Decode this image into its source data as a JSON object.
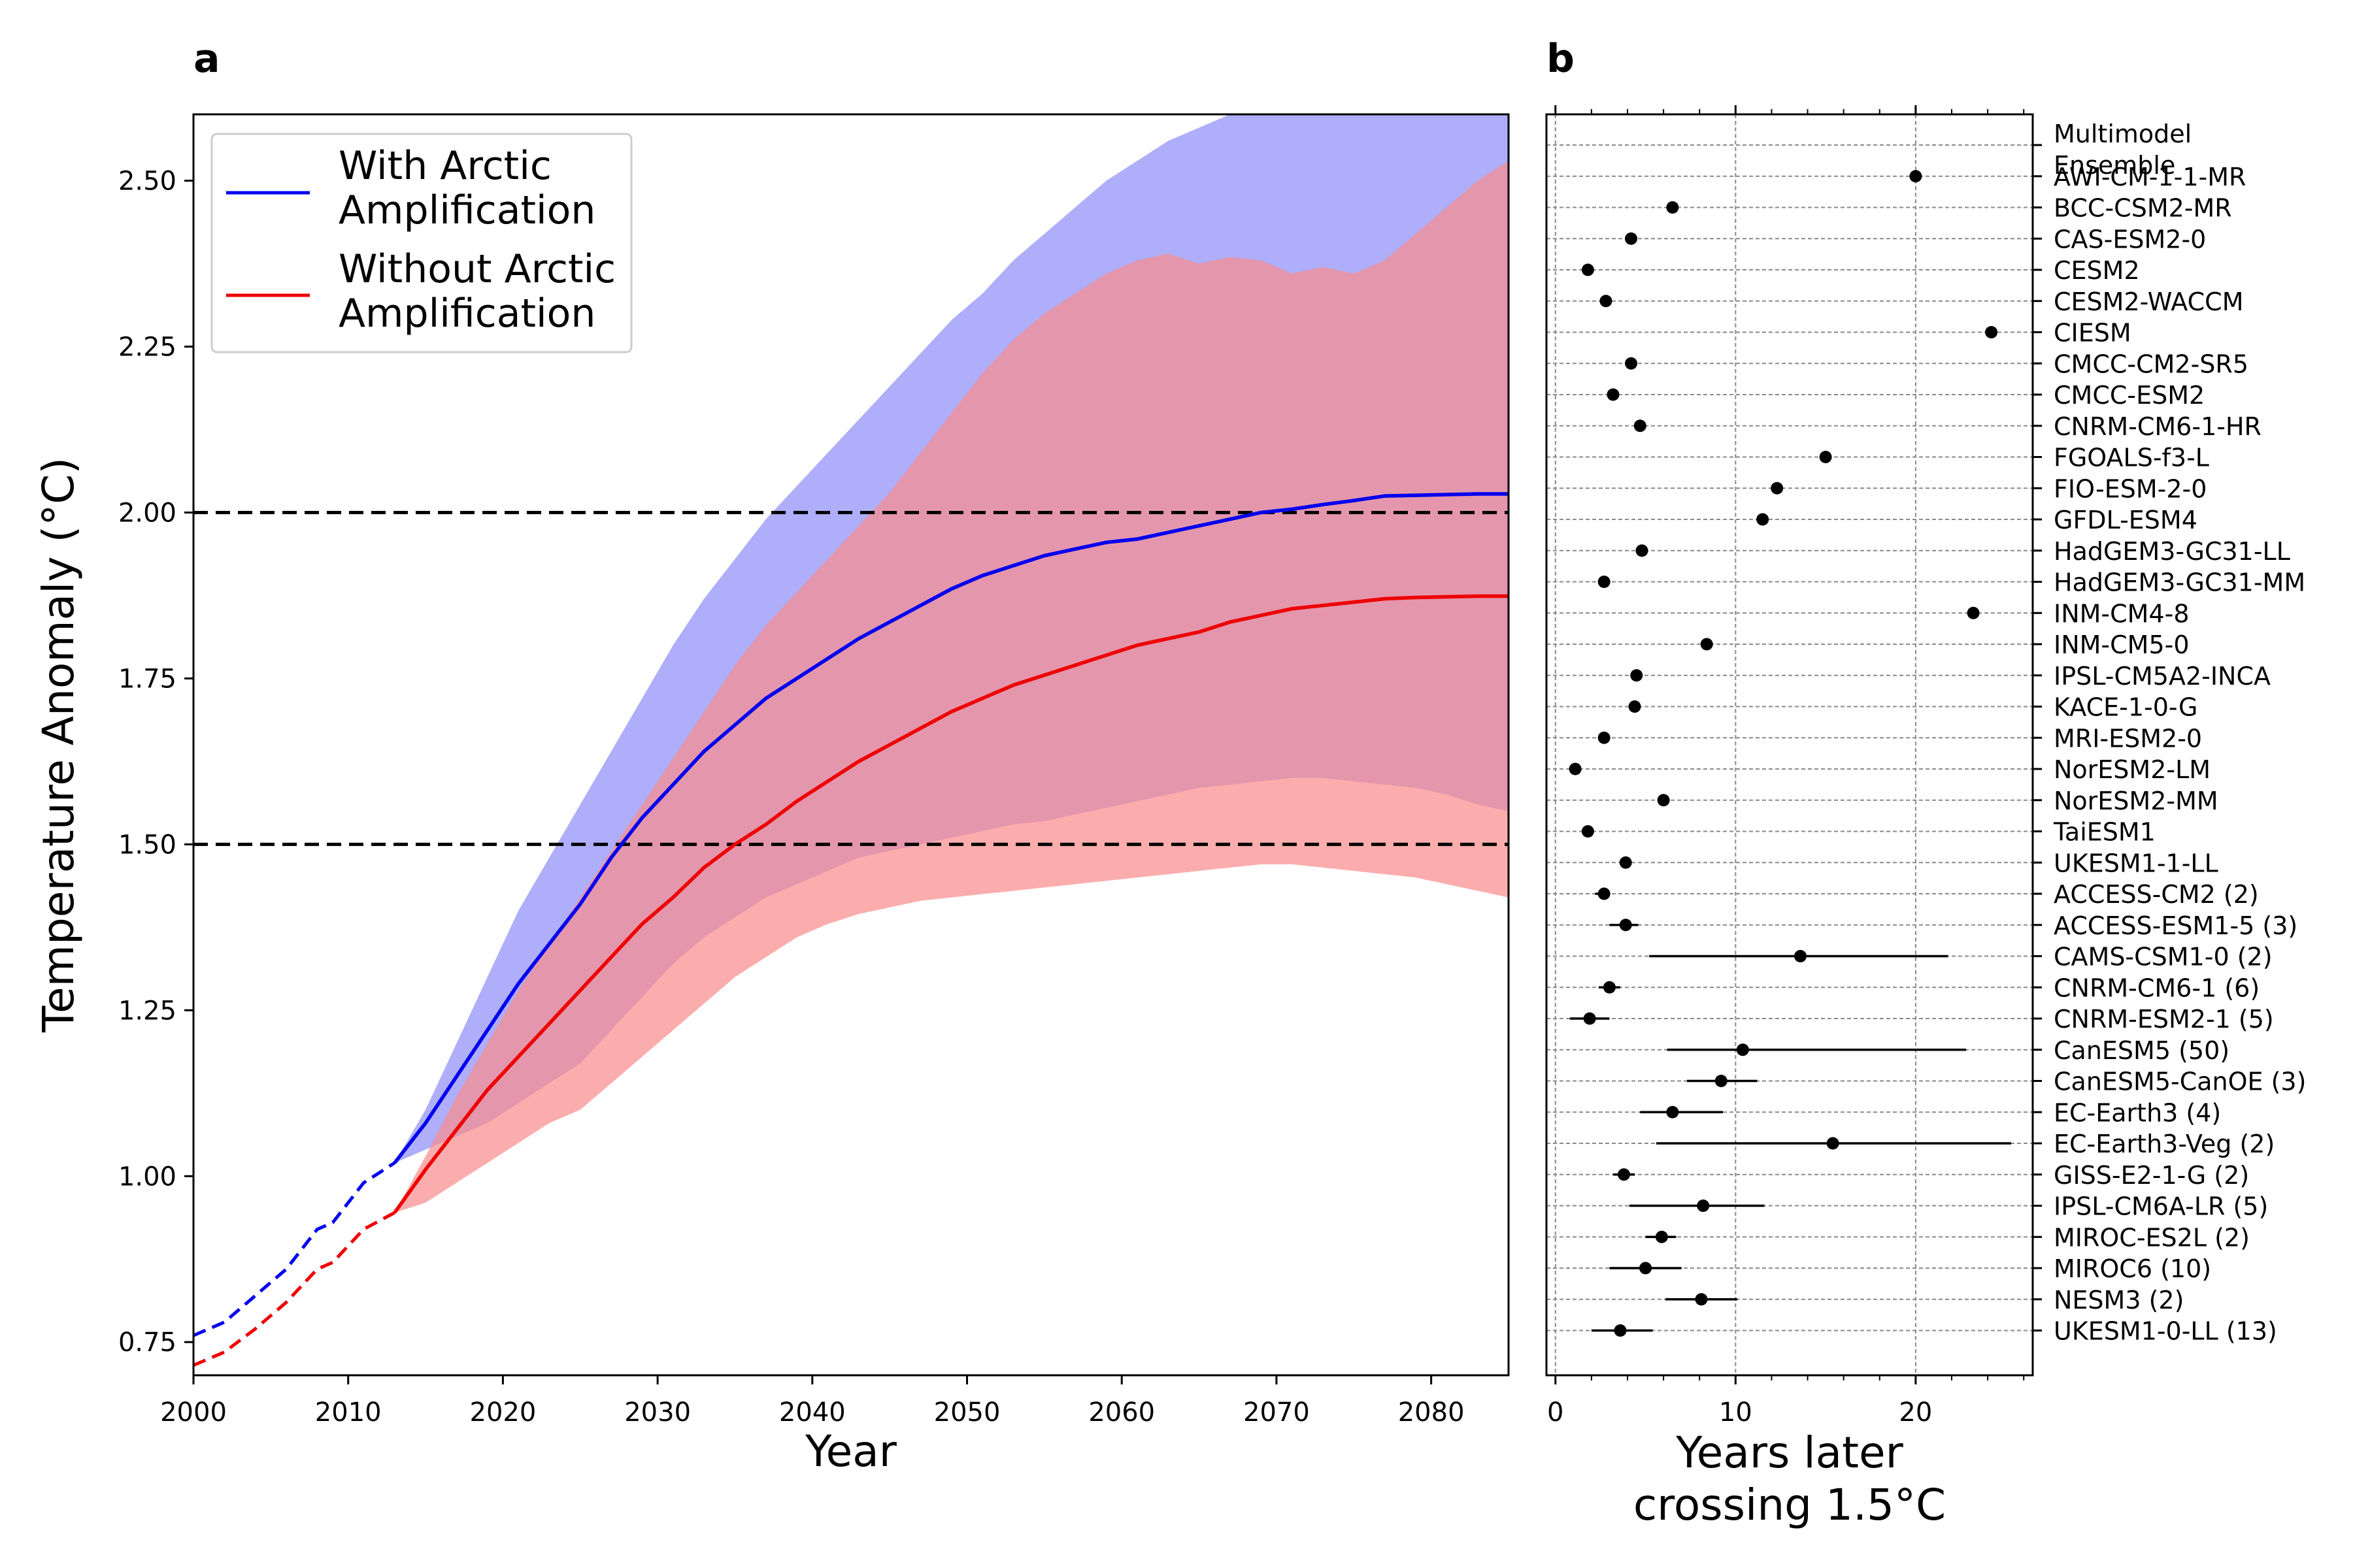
{
  "panels": {
    "a": {
      "label": "a",
      "xlabel": "Year",
      "ylabel": "Temperature Anomaly (°C)",
      "legend": [
        {
          "label_line1": "With Arctic",
          "label_line2": "Amplification",
          "color": "#0000ee"
        },
        {
          "label_line1": "Without Arctic",
          "label_line2": "Amplification",
          "color": "#ee0000"
        }
      ]
    },
    "b": {
      "label": "b",
      "xlabel_line1": "Years later",
      "xlabel_line2": "crossing 1.5°C"
    }
  },
  "chart_data": [
    {
      "type": "line",
      "xlim": [
        2000,
        2085
      ],
      "ylim": [
        0.7,
        2.6
      ],
      "xticks": [
        2000,
        2010,
        2020,
        2030,
        2040,
        2050,
        2060,
        2070,
        2080
      ],
      "yticks": [
        0.75,
        1.0,
        1.25,
        1.5,
        1.75,
        2.0,
        2.25,
        2.5
      ],
      "ytick_labels": [
        "0.75",
        "1.00",
        "1.25",
        "1.50",
        "1.75",
        "2.00",
        "2.25",
        "2.50"
      ],
      "reference_lines": [
        1.5,
        2.0
      ],
      "grid": false,
      "legend_position": "top-left",
      "colors": {
        "with": "#0000ee",
        "without": "#ee0000",
        "with_band": "#8f8ff8",
        "without_band": "#f98e8e"
      },
      "series": [
        {
          "name": "With Arctic Amplification",
          "historical_x": [
            2000,
            2002,
            2004,
            2006,
            2008,
            2009,
            2011,
            2013
          ],
          "historical_y": [
            0.76,
            0.78,
            0.82,
            0.86,
            0.92,
            0.93,
            0.99,
            1.02
          ],
          "x": [
            2013,
            2015,
            2017,
            2019,
            2021,
            2023,
            2025,
            2027,
            2029,
            2031,
            2033,
            2035,
            2037,
            2039,
            2041,
            2043,
            2045,
            2047,
            2049,
            2051,
            2053,
            2055,
            2057,
            2059,
            2061,
            2063,
            2065,
            2067,
            2069,
            2071,
            2073,
            2075,
            2077,
            2079,
            2081,
            2083,
            2085
          ],
          "y": [
            1.02,
            1.08,
            1.15,
            1.22,
            1.29,
            1.35,
            1.41,
            1.48,
            1.54,
            1.59,
            1.64,
            1.68,
            1.72,
            1.75,
            1.78,
            1.81,
            1.835,
            1.86,
            1.885,
            1.905,
            1.92,
            1.935,
            1.945,
            1.955,
            1.96,
            1.97,
            1.98,
            1.99,
            2.0,
            2.005,
            2.012,
            2.018,
            2.025,
            2.026,
            2.027,
            2.028,
            2.028
          ],
          "lower": [
            1.02,
            1.04,
            1.06,
            1.08,
            1.11,
            1.14,
            1.17,
            1.22,
            1.27,
            1.32,
            1.36,
            1.39,
            1.42,
            1.44,
            1.46,
            1.48,
            1.49,
            1.5,
            1.51,
            1.52,
            1.53,
            1.535,
            1.545,
            1.555,
            1.565,
            1.575,
            1.585,
            1.59,
            1.595,
            1.6,
            1.6,
            1.595,
            1.59,
            1.585,
            1.575,
            1.56,
            1.55
          ],
          "upper": [
            1.02,
            1.1,
            1.2,
            1.3,
            1.4,
            1.48,
            1.56,
            1.64,
            1.72,
            1.8,
            1.87,
            1.93,
            1.99,
            2.04,
            2.09,
            2.14,
            2.19,
            2.24,
            2.29,
            2.33,
            2.38,
            2.42,
            2.46,
            2.5,
            2.53,
            2.56,
            2.58,
            2.6,
            2.62,
            2.64,
            2.66,
            2.68,
            2.7,
            2.72,
            2.74,
            2.76,
            2.78
          ]
        },
        {
          "name": "Without Arctic Amplification",
          "historical_x": [
            2000,
            2002,
            2004,
            2006,
            2008,
            2009,
            2011,
            2013
          ],
          "historical_y": [
            0.715,
            0.735,
            0.77,
            0.81,
            0.86,
            0.87,
            0.92,
            0.945
          ],
          "x": [
            2013,
            2015,
            2017,
            2019,
            2021,
            2023,
            2025,
            2027,
            2029,
            2031,
            2033,
            2035,
            2037,
            2039,
            2041,
            2043,
            2045,
            2047,
            2049,
            2051,
            2053,
            2055,
            2057,
            2059,
            2061,
            2063,
            2065,
            2067,
            2069,
            2071,
            2073,
            2075,
            2077,
            2079,
            2081,
            2083,
            2085
          ],
          "y": [
            0.945,
            1.01,
            1.07,
            1.13,
            1.18,
            1.23,
            1.28,
            1.33,
            1.38,
            1.42,
            1.465,
            1.5,
            1.53,
            1.565,
            1.595,
            1.625,
            1.65,
            1.675,
            1.7,
            1.72,
            1.74,
            1.755,
            1.77,
            1.785,
            1.8,
            1.81,
            1.82,
            1.835,
            1.845,
            1.855,
            1.86,
            1.865,
            1.87,
            1.872,
            1.873,
            1.874,
            1.874
          ],
          "lower": [
            0.945,
            0.96,
            0.99,
            1.02,
            1.05,
            1.08,
            1.1,
            1.14,
            1.18,
            1.22,
            1.26,
            1.3,
            1.33,
            1.36,
            1.38,
            1.395,
            1.405,
            1.415,
            1.42,
            1.425,
            1.43,
            1.435,
            1.44,
            1.445,
            1.45,
            1.455,
            1.46,
            1.465,
            1.47,
            1.47,
            1.465,
            1.46,
            1.455,
            1.45,
            1.44,
            1.43,
            1.42
          ],
          "upper": [
            0.945,
            1.03,
            1.12,
            1.2,
            1.28,
            1.35,
            1.42,
            1.49,
            1.56,
            1.63,
            1.7,
            1.77,
            1.83,
            1.88,
            1.93,
            1.98,
            2.03,
            2.09,
            2.15,
            2.21,
            2.26,
            2.3,
            2.33,
            2.36,
            2.38,
            2.39,
            2.375,
            2.385,
            2.38,
            2.36,
            2.37,
            2.36,
            2.38,
            2.42,
            2.46,
            2.5,
            2.53
          ]
        }
      ]
    },
    {
      "type": "scatter",
      "xlim": [
        -0.5,
        26.5
      ],
      "xticks": [
        0,
        10,
        20
      ],
      "grid": true,
      "categories": [
        "Multimodel Ensemble",
        "AWI-CM-1-1-MR",
        "BCC-CSM2-MR",
        "CAS-ESM2-0",
        "CESM2",
        "CESM2-WACCM",
        "CIESM",
        "CMCC-CM2-SR5",
        "CMCC-ESM2",
        "CNRM-CM6-1-HR",
        "FGOALS-f3-L",
        "FIO-ESM-2-0",
        "GFDL-ESM4",
        "HadGEM3-GC31-LL",
        "HadGEM3-GC31-MM",
        "INM-CM4-8",
        "INM-CM5-0",
        "IPSL-CM5A2-INCA",
        "KACE-1-0-G",
        "MRI-ESM2-0",
        "NorESM2-LM",
        "NorESM2-MM",
        "TaiESM1",
        "UKESM1-1-LL",
        "ACCESS-CM2 (2)",
        "ACCESS-ESM1-5 (3)",
        "CAMS-CSM1-0 (2)",
        "CNRM-CM6-1 (6)",
        "CNRM-ESM2-1 (5)",
        "CanESM5 (50)",
        "CanESM5-CanOE (3)",
        "EC-Earth3 (4)",
        "EC-Earth3-Veg (2)",
        "GISS-E2-1-G (2)",
        "IPSL-CM6A-LR (5)",
        "MIROC-ES2L (2)",
        "MIROC6 (10)",
        "NESM3 (2)",
        "UKESM1-0-LL (13)"
      ],
      "values": [
        null,
        20,
        6.5,
        4.2,
        1.8,
        2.8,
        24.2,
        4.2,
        3.2,
        4.7,
        15,
        12.3,
        11.5,
        4.8,
        2.7,
        23.2,
        8.4,
        4.5,
        4.4,
        2.7,
        1.1,
        6,
        1.8,
        3.9,
        2.7,
        3.9,
        13.6,
        3,
        1.9,
        10.4,
        9.2,
        6.5,
        15.4,
        3.8,
        8.2,
        5.9,
        5,
        8.1,
        3.6
      ],
      "error_ranges": [
        null,
        null,
        null,
        null,
        null,
        null,
        null,
        null,
        null,
        null,
        null,
        null,
        null,
        null,
        null,
        null,
        null,
        null,
        null,
        null,
        null,
        null,
        null,
        null,
        [
          2.2,
          3.0
        ],
        [
          3.0,
          4.6
        ],
        [
          5.2,
          21.8
        ],
        [
          2.4,
          3.6
        ],
        [
          0.8,
          3.0
        ],
        [
          6.2,
          22.8
        ],
        [
          7.3,
          11.2
        ],
        [
          4.7,
          9.3
        ],
        [
          5.6,
          25.3
        ],
        [
          3.2,
          4.4
        ],
        [
          4.1,
          11.6
        ],
        [
          5.0,
          6.7
        ],
        [
          3.0,
          7.0
        ],
        [
          6.1,
          10.1
        ],
        [
          2.0,
          5.4
        ]
      ]
    }
  ]
}
